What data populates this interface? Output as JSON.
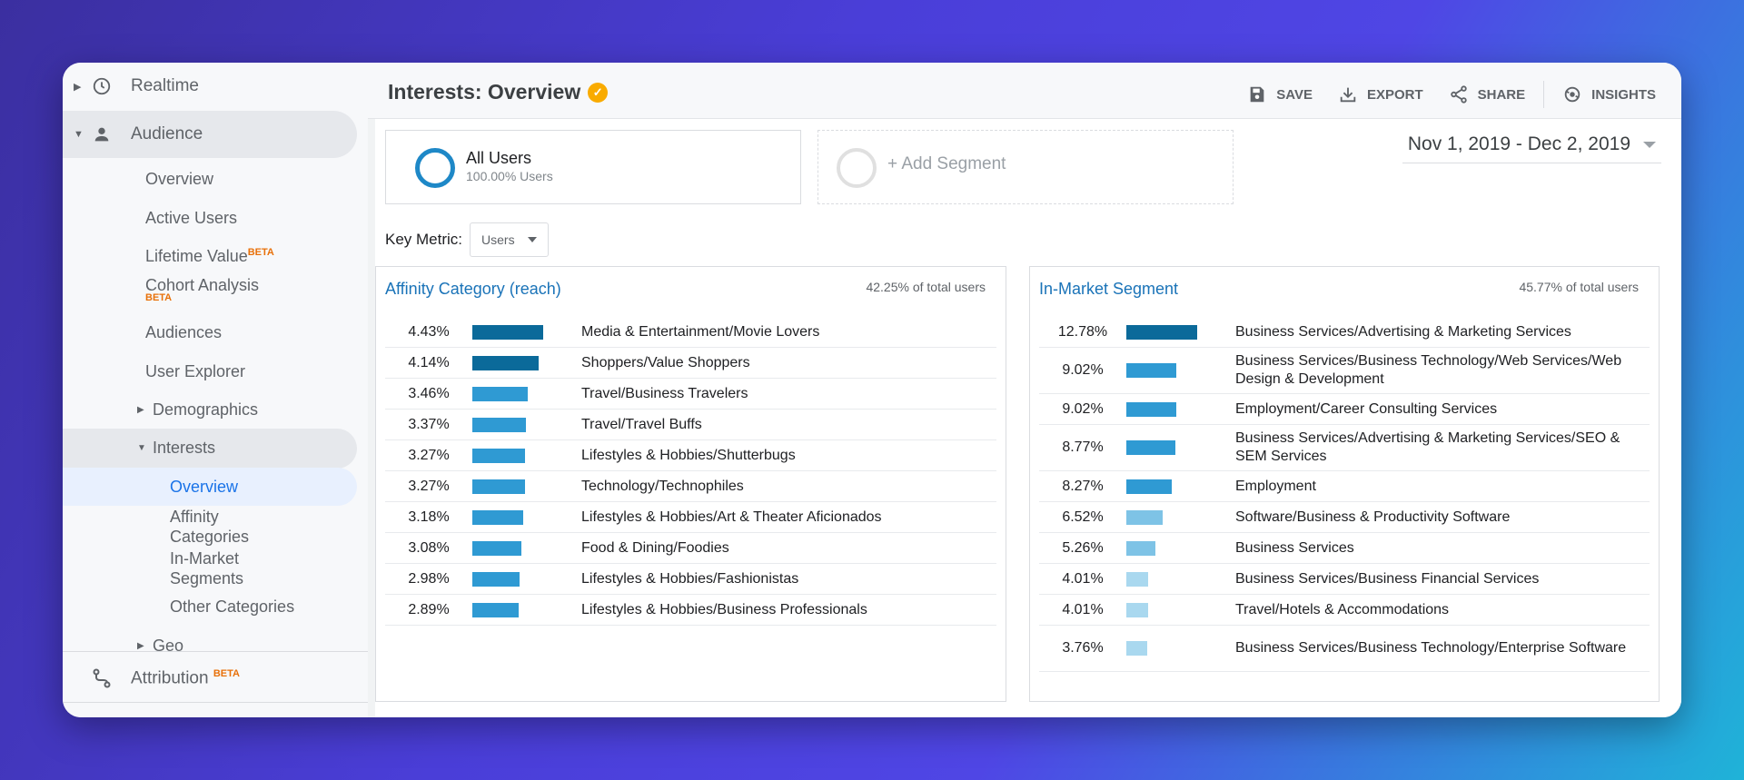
{
  "sidebar": {
    "realtime": "Realtime",
    "audience": "Audience",
    "items": [
      {
        "label": "Overview"
      },
      {
        "label": "Active Users"
      },
      {
        "label": "Lifetime Value",
        "badge": "BETA"
      },
      {
        "label": "Cohort Analysis",
        "badge": "BETA"
      },
      {
        "label": "Audiences"
      },
      {
        "label": "User Explorer"
      },
      {
        "label": "Demographics"
      },
      {
        "label": "Interests"
      }
    ],
    "interests_children": [
      "Overview",
      "Affinity Categories",
      "In-Market Segments",
      "Other Categories"
    ],
    "geo": "Geo",
    "attribution": "Attribution",
    "attribution_badge": "BETA"
  },
  "header": {
    "title": "Interests: Overview",
    "actions": {
      "save": "SAVE",
      "export": "EXPORT",
      "share": "SHARE",
      "insights": "INSIGHTS"
    }
  },
  "segments": {
    "all_users_name": "All Users",
    "all_users_sub": "100.00% Users",
    "add_segment": "+ Add Segment"
  },
  "date_range": "Nov 1, 2019 - Dec 2, 2019",
  "key_metric": {
    "label": "Key Metric:",
    "value": "Users"
  },
  "affinity": {
    "title": "Affinity Category (reach)",
    "total": "42.25% of total users",
    "rows": [
      {
        "pct": "4.43%",
        "value": 4.43,
        "label": "Media & Entertainment/Movie Lovers"
      },
      {
        "pct": "4.14%",
        "value": 4.14,
        "label": "Shoppers/Value Shoppers"
      },
      {
        "pct": "3.46%",
        "value": 3.46,
        "label": "Travel/Business Travelers"
      },
      {
        "pct": "3.37%",
        "value": 3.37,
        "label": "Travel/Travel Buffs"
      },
      {
        "pct": "3.27%",
        "value": 3.27,
        "label": "Lifestyles & Hobbies/Shutterbugs"
      },
      {
        "pct": "3.27%",
        "value": 3.27,
        "label": "Technology/Technophiles"
      },
      {
        "pct": "3.18%",
        "value": 3.18,
        "label": "Lifestyles & Hobbies/Art & Theater Aficionados"
      },
      {
        "pct": "3.08%",
        "value": 3.08,
        "label": "Food & Dining/Foodies"
      },
      {
        "pct": "2.98%",
        "value": 2.98,
        "label": "Lifestyles & Hobbies/Fashionistas"
      },
      {
        "pct": "2.89%",
        "value": 2.89,
        "label": "Lifestyles & Hobbies/Business Professionals"
      }
    ]
  },
  "inmarket": {
    "title": "In-Market Segment",
    "total": "45.77% of total users",
    "rows": [
      {
        "pct": "12.78%",
        "value": 12.78,
        "label": "Business Services/Advertising & Marketing Services"
      },
      {
        "pct": "9.02%",
        "value": 9.02,
        "label": "Business Services/Business Technology/Web Services/Web Design & Development"
      },
      {
        "pct": "9.02%",
        "value": 9.02,
        "label": "Employment/Career Consulting Services"
      },
      {
        "pct": "8.77%",
        "value": 8.77,
        "label": "Business Services/Advertising & Marketing Services/SEO & SEM Services"
      },
      {
        "pct": "8.27%",
        "value": 8.27,
        "label": "Employment"
      },
      {
        "pct": "6.52%",
        "value": 6.52,
        "label": "Software/Business & Productivity Software"
      },
      {
        "pct": "5.26%",
        "value": 5.26,
        "label": "Business Services"
      },
      {
        "pct": "4.01%",
        "value": 4.01,
        "label": "Business Services/Business Financial Services"
      },
      {
        "pct": "4.01%",
        "value": 4.01,
        "label": "Travel/Hotels & Accommodations"
      },
      {
        "pct": "3.76%",
        "value": 3.76,
        "label": "Business Services/Business Technology/Enterprise Software"
      }
    ]
  },
  "colors": {
    "accent": "#1a73b8",
    "bar_dark": "#0b6a9a",
    "bar_mid": "#2f9ad3",
    "bar_light": "#7ec3e6",
    "bar_lighter": "#a9d8ef"
  }
}
